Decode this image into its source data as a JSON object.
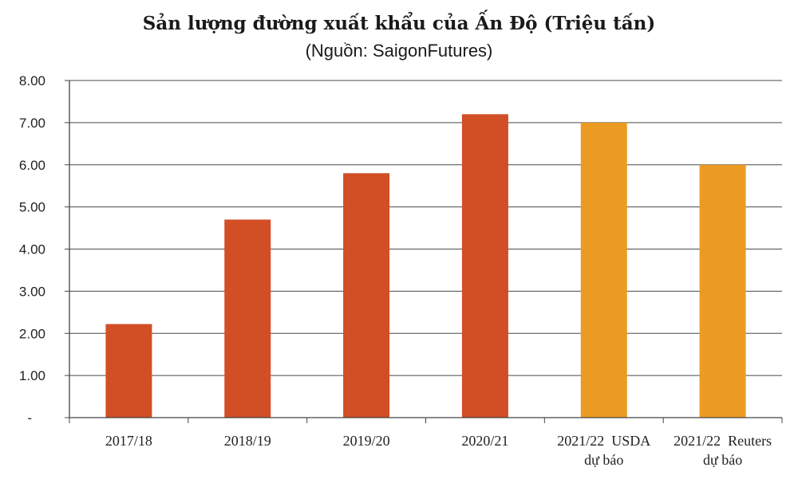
{
  "chart_data": {
    "type": "bar",
    "title": "Sản lượng đường xuất khẩu của Ấn Độ (Triệu tấn)",
    "subtitle": "(Nguồn:  SaigonFutures)",
    "categories": [
      [
        "2017/18"
      ],
      [
        "2018/19"
      ],
      [
        "2019/20"
      ],
      [
        "2020/21"
      ],
      [
        "2021/22  USDA",
        "dự báo"
      ],
      [
        "2021/22  Reuters",
        "dự báo"
      ]
    ],
    "values": [
      2.22,
      4.7,
      5.8,
      7.2,
      7.0,
      6.0
    ],
    "bar_colors": [
      "#d24e25",
      "#d24e25",
      "#d24e25",
      "#d24e25",
      "#ec9b22",
      "#ec9b22"
    ],
    "ylim": [
      0,
      8
    ],
    "yticks": [
      {
        "value": 0,
        "label": "-"
      },
      {
        "value": 1,
        "label": "1.00"
      },
      {
        "value": 2,
        "label": "2.00"
      },
      {
        "value": 3,
        "label": "3.00"
      },
      {
        "value": 4,
        "label": "4.00"
      },
      {
        "value": 5,
        "label": "5.00"
      },
      {
        "value": 6,
        "label": "6.00"
      },
      {
        "value": 7,
        "label": "7.00"
      },
      {
        "value": 8,
        "label": "8.00"
      }
    ],
    "grid": true,
    "xlabel": "",
    "ylabel": ""
  }
}
